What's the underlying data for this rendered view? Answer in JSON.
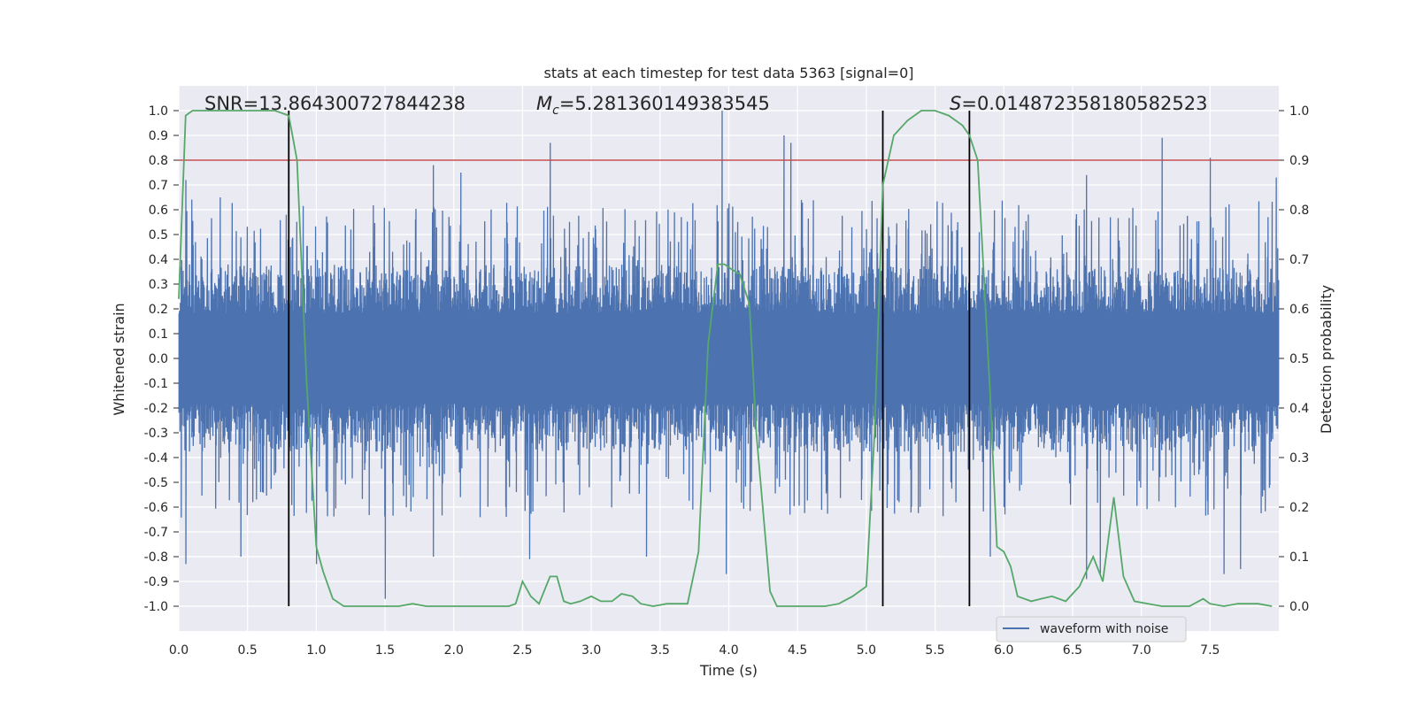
{
  "chart_data": {
    "type": "line",
    "title": "stats at each timestep for test data 5363 [signal=0]",
    "xlabel": "Time (s)",
    "ylabel": "Whitened strain",
    "ylabel_right": "Detection probability",
    "xlim": [
      0.0,
      8.0
    ],
    "ylim": [
      -1.1,
      1.1
    ],
    "ylim_right": [
      -0.05,
      1.05
    ],
    "x_ticks": [
      "0.0",
      "0.5",
      "1.0",
      "1.5",
      "2.0",
      "2.5",
      "3.0",
      "3.5",
      "4.0",
      "4.5",
      "5.0",
      "5.5",
      "6.0",
      "6.5",
      "7.0",
      "7.5"
    ],
    "y_ticks": [
      "1.0",
      "0.9",
      "0.8",
      "0.7",
      "0.6",
      "0.5",
      "0.4",
      "0.3",
      "0.2",
      "0.1",
      "0.0",
      "-0.1",
      "-0.2",
      "-0.3",
      "-0.4",
      "-0.5",
      "-0.6",
      "-0.7",
      "-0.8",
      "-0.9",
      "-1.0"
    ],
    "y_ticks_right": [
      "1.0",
      "0.9",
      "0.8",
      "0.7",
      "0.6",
      "0.5",
      "0.4",
      "0.3",
      "0.2",
      "0.1",
      "0.0"
    ],
    "annotations": {
      "snr": "SNR=13.864300727844238",
      "mc_symbol": "M",
      "mc_sub": "c",
      "mc_value": "=5.281360149383545",
      "s_symbol": "S",
      "s_value": "=0.014872358180582523"
    },
    "legend": {
      "label": "waveform with noise",
      "position": "lower-right"
    },
    "threshold": {
      "value": 0.9,
      "axis": "right",
      "color": "#c44e52"
    },
    "vlines": [
      0.8,
      5.12,
      5.75
    ],
    "vline_range": [
      0.0,
      1.0
    ],
    "waveform": {
      "name": "waveform with noise",
      "color": "#4c72b0",
      "typical_envelope": 0.33,
      "spikes_pos": [
        [
          0.05,
          0.72
        ],
        [
          0.3,
          0.65
        ],
        [
          0.78,
          0.58
        ],
        [
          1.85,
          0.78
        ],
        [
          2.05,
          0.75
        ],
        [
          2.7,
          0.87
        ],
        [
          3.95,
          1.0
        ],
        [
          4.4,
          0.9
        ],
        [
          4.45,
          0.87
        ],
        [
          6.6,
          0.74
        ],
        [
          7.15,
          0.89
        ],
        [
          7.5,
          0.81
        ],
        [
          7.98,
          0.73
        ]
      ],
      "spikes_neg": [
        [
          0.05,
          -0.83
        ],
        [
          0.45,
          -0.8
        ],
        [
          1.0,
          -0.83
        ],
        [
          1.5,
          -0.97
        ],
        [
          1.85,
          -0.8
        ],
        [
          2.55,
          -0.81
        ],
        [
          3.4,
          -0.8
        ],
        [
          3.98,
          -0.87
        ],
        [
          5.9,
          -0.8
        ],
        [
          6.6,
          -0.89
        ],
        [
          6.7,
          -0.87
        ],
        [
          7.6,
          -0.87
        ],
        [
          7.72,
          -0.85
        ]
      ]
    },
    "probability": {
      "name": "detection probability",
      "color": "#55a868",
      "x": [
        0.0,
        0.05,
        0.1,
        0.2,
        0.3,
        0.5,
        0.7,
        0.8,
        0.86,
        0.93,
        1.0,
        1.05,
        1.12,
        1.2,
        1.3,
        1.4,
        1.5,
        1.6,
        1.7,
        1.8,
        1.9,
        2.0,
        2.1,
        2.2,
        2.3,
        2.4,
        2.45,
        2.5,
        2.56,
        2.62,
        2.7,
        2.75,
        2.8,
        2.85,
        2.92,
        3.0,
        3.07,
        3.15,
        3.22,
        3.3,
        3.36,
        3.45,
        3.55,
        3.7,
        3.78,
        3.85,
        3.92,
        3.97,
        4.02,
        4.08,
        4.15,
        4.2,
        4.3,
        4.35,
        4.42,
        4.5,
        4.6,
        4.7,
        4.8,
        4.9,
        5.0,
        5.06,
        5.12,
        5.2,
        5.3,
        5.4,
        5.5,
        5.6,
        5.7,
        5.75,
        5.81,
        5.9,
        5.95,
        6.0,
        6.05,
        6.1,
        6.2,
        6.27,
        6.35,
        6.45,
        6.55,
        6.65,
        6.72,
        6.8,
        6.87,
        6.95,
        7.05,
        7.15,
        7.3,
        7.35,
        7.45,
        7.5,
        7.6,
        7.7,
        7.85,
        7.95
      ],
      "y": [
        0.62,
        0.99,
        1.0,
        1.0,
        1.0,
        1.0,
        1.0,
        0.99,
        0.9,
        0.45,
        0.12,
        0.07,
        0.015,
        0.0,
        0.0,
        0.0,
        0.0,
        0.0,
        0.005,
        0.0,
        0.0,
        0.0,
        0.0,
        0.0,
        0.0,
        0.0,
        0.005,
        0.05,
        0.02,
        0.005,
        0.06,
        0.06,
        0.01,
        0.005,
        0.01,
        0.02,
        0.01,
        0.01,
        0.025,
        0.02,
        0.005,
        0.0,
        0.005,
        0.005,
        0.11,
        0.53,
        0.69,
        0.69,
        0.68,
        0.67,
        0.61,
        0.35,
        0.03,
        0.0,
        0.0,
        0.0,
        0.0,
        0.0,
        0.005,
        0.02,
        0.04,
        0.35,
        0.85,
        0.95,
        0.98,
        1.0,
        1.0,
        0.99,
        0.97,
        0.95,
        0.9,
        0.43,
        0.12,
        0.11,
        0.08,
        0.02,
        0.01,
        0.015,
        0.02,
        0.01,
        0.04,
        0.1,
        0.05,
        0.22,
        0.06,
        0.01,
        0.005,
        0.0,
        0.0,
        0.0,
        0.015,
        0.005,
        0.0,
        0.005,
        0.005,
        0.0
      ]
    }
  }
}
